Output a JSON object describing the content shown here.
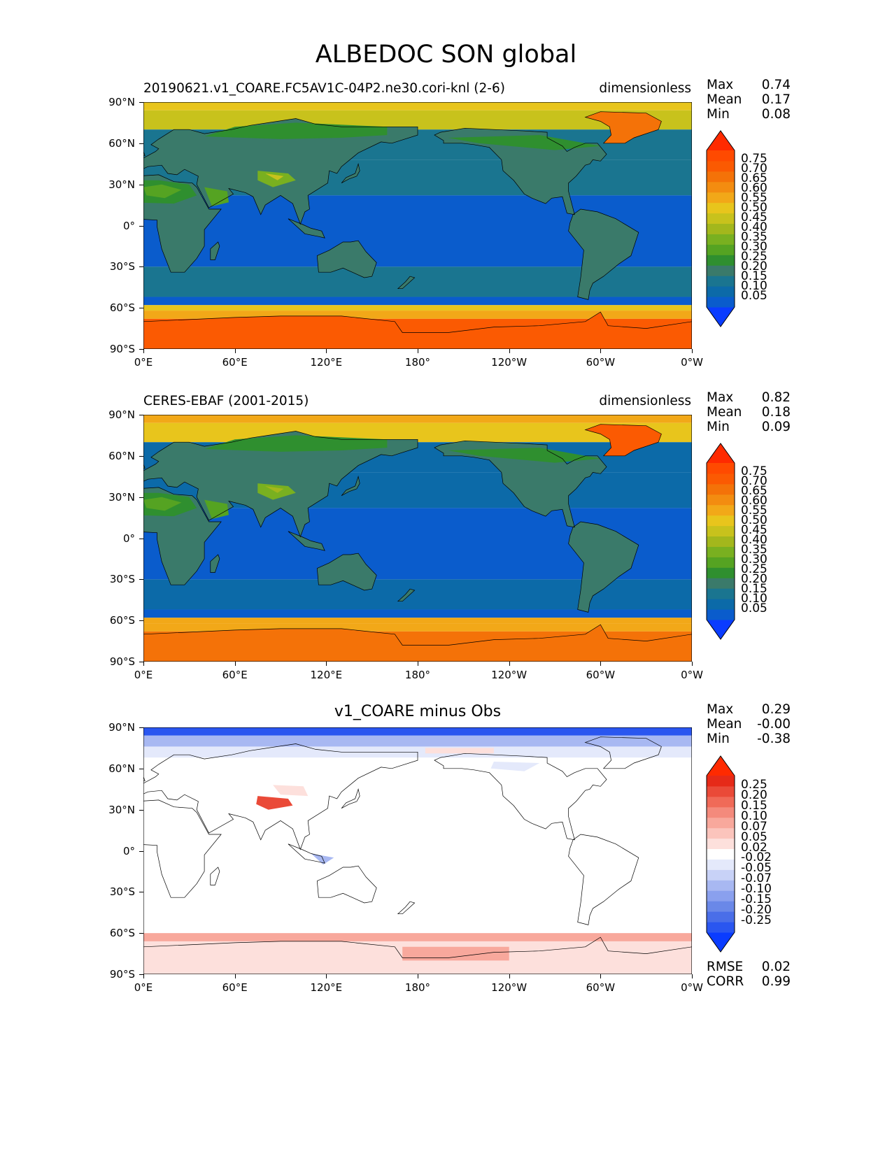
{
  "figure": {
    "title": "ALBEDOC SON global"
  },
  "x_tick_labels": [
    "0°E",
    "60°E",
    "120°E",
    "180°",
    "120°W",
    "60°W",
    "0°W"
  ],
  "y_tick_labels": [
    "90°N",
    "60°N",
    "30°N",
    "0°",
    "30°S",
    "60°S",
    "90°S"
  ],
  "panels": [
    {
      "left_title": "20190621.v1_COARE.FC5AV1C-04P2.ne30.cori-knl (2-6)",
      "center_title": "",
      "right_title": "dimensionless",
      "stats": [
        {
          "label": "Max",
          "value": "0.74"
        },
        {
          "label": "Mean",
          "value": "0.17"
        },
        {
          "label": "Min",
          "value": "0.08"
        }
      ],
      "colorbar": {
        "labels": [
          "0.75",
          "0.70",
          "0.65",
          "0.60",
          "0.55",
          "0.50",
          "0.45",
          "0.40",
          "0.35",
          "0.30",
          "0.25",
          "0.20",
          "0.15",
          "0.10",
          "0.05"
        ],
        "colors_bottom_to_top": [
          "#0a3cff",
          "#0a5ccc",
          "#0c6aa8",
          "#1a7590",
          "#3a7a6a",
          "#2f8f2f",
          "#55a322",
          "#79b020",
          "#a3b71c",
          "#c8c21c",
          "#e8c51c",
          "#f2a818",
          "#f38c10",
          "#f47208",
          "#fb5a02",
          "#ff4a00",
          "#ff2a00"
        ]
      },
      "map": {
        "variant": "model",
        "field_colors": {
          "ocean_tropics": "#0a5ccc",
          "ocean_mid": "#1a7590",
          "land_veg": "#3a7a6a",
          "land_green": "#2f8f2f",
          "land_light": "#55a322",
          "desert": "#79b020",
          "desert_bright": "#c8c21c",
          "arctic": "#c8c21c",
          "arctic_high": "#e8c51c",
          "sea_ice": "#f2a818",
          "antarctic": "#fb5a02",
          "greenland": "#f47208"
        }
      }
    },
    {
      "left_title": "CERES-EBAF (2001-2015)",
      "center_title": "",
      "right_title": "dimensionless",
      "stats": [
        {
          "label": "Max",
          "value": "0.82"
        },
        {
          "label": "Mean",
          "value": "0.18"
        },
        {
          "label": "Min",
          "value": "0.09"
        }
      ],
      "colorbar": {
        "labels": [
          "0.75",
          "0.70",
          "0.65",
          "0.60",
          "0.55",
          "0.50",
          "0.45",
          "0.40",
          "0.35",
          "0.30",
          "0.25",
          "0.20",
          "0.15",
          "0.10",
          "0.05"
        ],
        "colors_bottom_to_top": [
          "#0a3cff",
          "#0a5ccc",
          "#0c6aa8",
          "#1a7590",
          "#3a7a6a",
          "#2f8f2f",
          "#55a322",
          "#79b020",
          "#a3b71c",
          "#c8c21c",
          "#e8c51c",
          "#f2a818",
          "#f38c10",
          "#f47208",
          "#fb5a02",
          "#ff4a00",
          "#ff2a00"
        ]
      },
      "map": {
        "variant": "obs",
        "field_colors": {
          "ocean_tropics": "#0a5ccc",
          "ocean_mid": "#0c6aa8",
          "land_veg": "#3a7a6a",
          "land_green": "#2f8f2f",
          "land_light": "#55a322",
          "desert": "#79b020",
          "desert_bright": "#a3b71c",
          "arctic": "#e8c51c",
          "arctic_high": "#f2a818",
          "sea_ice": "#f2a818",
          "antarctic": "#f47208",
          "greenland": "#fb5a02"
        }
      }
    },
    {
      "left_title": "",
      "center_title": "v1_COARE minus Obs",
      "right_title": "",
      "stats": [
        {
          "label": "Max",
          "value": "0.29"
        },
        {
          "label": "Mean",
          "value": "-0.00"
        },
        {
          "label": "Min",
          "value": "-0.38"
        }
      ],
      "colorbar": {
        "labels": [
          "0.25",
          "0.20",
          "0.15",
          "0.10",
          "0.07",
          "0.05",
          "0.02",
          "-0.02",
          "-0.05",
          "-0.07",
          "-0.10",
          "-0.15",
          "-0.20",
          "-0.25"
        ],
        "colors_bottom_to_top": [
          "#0a3cff",
          "#2a56f0",
          "#4a6ee8",
          "#6a88e8",
          "#8aa0ee",
          "#a8b8f2",
          "#c8d2f7",
          "#e4e9fb",
          "#ffffff",
          "#fde0dc",
          "#fbc4bc",
          "#f8a89c",
          "#f48a7c",
          "#f06a58",
          "#ea4a38",
          "#e62a18",
          "#ff2a00"
        ]
      },
      "map": {
        "variant": "diff",
        "field_colors": {
          "positive": "#f8a89c",
          "positive_strong": "#ea4a38",
          "positive_light": "#fde0dc",
          "negative": "#a8b8f2",
          "negative_strong": "#2a56f0",
          "negative_light": "#e4e9fb",
          "neutral": "#ffffff"
        }
      },
      "extra_stats": [
        {
          "label": "RMSE",
          "value": "0.02"
        },
        {
          "label": "CORR",
          "value": "0.99"
        }
      ]
    }
  ]
}
